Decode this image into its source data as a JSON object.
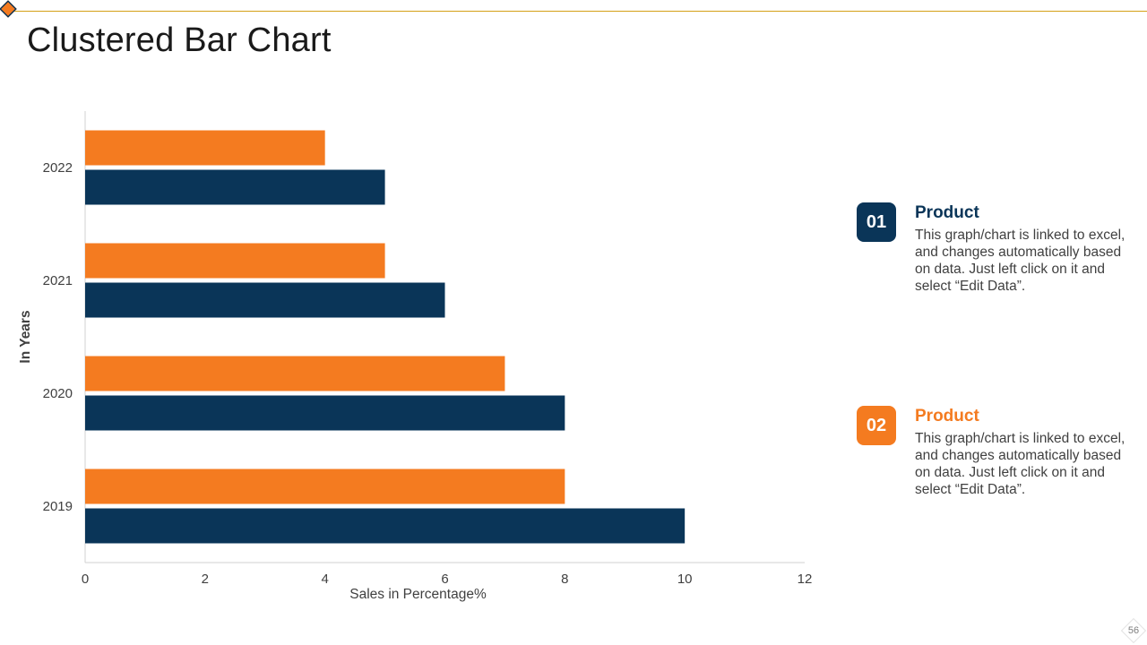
{
  "slide": {
    "title": "Clustered Bar Chart",
    "page_number": "56"
  },
  "colors": {
    "series_1": "#0a3558",
    "series_2": "#f47b20",
    "accent_line": "#d4a017"
  },
  "legend": [
    {
      "badge": "01",
      "title": "Product",
      "description": "This graph/chart is linked to excel, and changes automatically based on data. Just left click on it and select “Edit Data”."
    },
    {
      "badge": "02",
      "title": "Product",
      "description": "This graph/chart is linked to excel, and changes automatically based on data. Just left click on it and select “Edit Data”."
    }
  ],
  "chart_data": {
    "type": "bar",
    "orientation": "horizontal",
    "categories": [
      "2019",
      "2020",
      "2021",
      "2022"
    ],
    "series": [
      {
        "values": [
          10,
          8,
          6,
          5
        ],
        "color": "#0a3558"
      },
      {
        "values": [
          8,
          7,
          5,
          4
        ],
        "color": "#f47b20"
      }
    ],
    "xlabel": "Sales in Percentage%",
    "ylabel": "In Years",
    "xlim": [
      0,
      12
    ],
    "xticks": [
      "0",
      "2",
      "4",
      "6",
      "8",
      "10",
      "12"
    ],
    "grid": false
  }
}
